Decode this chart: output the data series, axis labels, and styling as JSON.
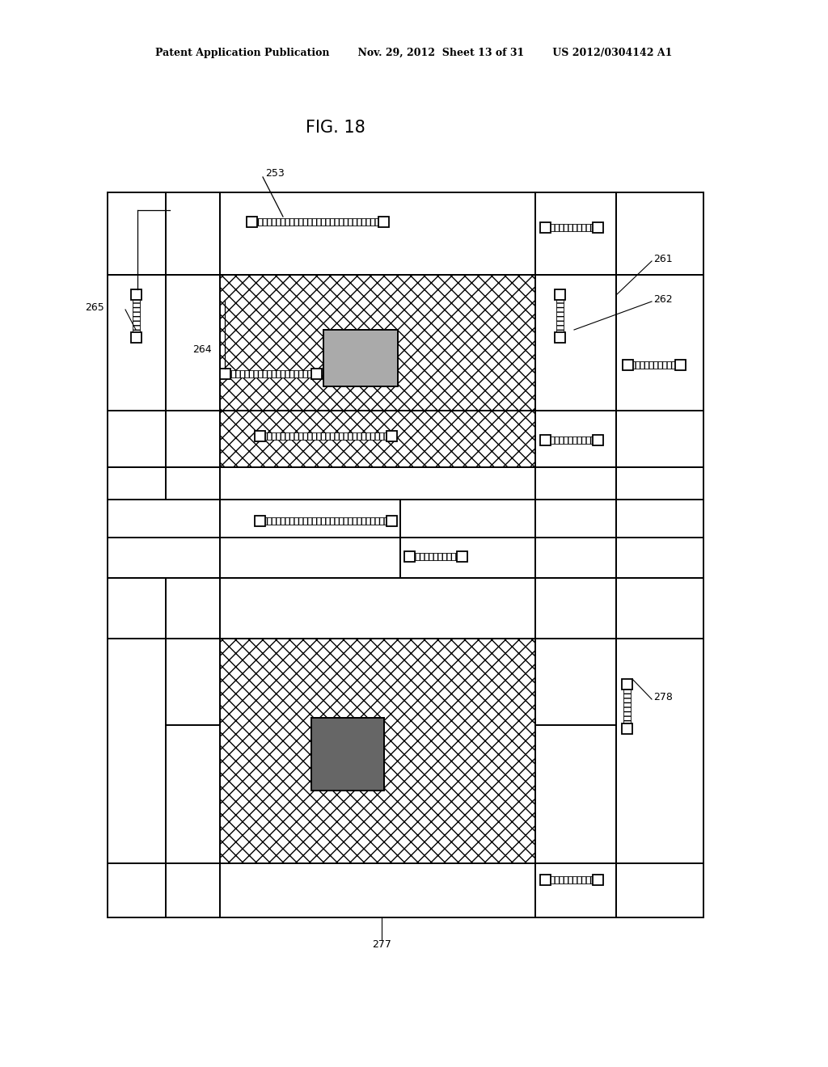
{
  "header": "Patent Application Publication        Nov. 29, 2012  Sheet 13 of 31        US 2012/0304142 A1",
  "fig_title": "FIG. 18",
  "bg": "#ffffff"
}
